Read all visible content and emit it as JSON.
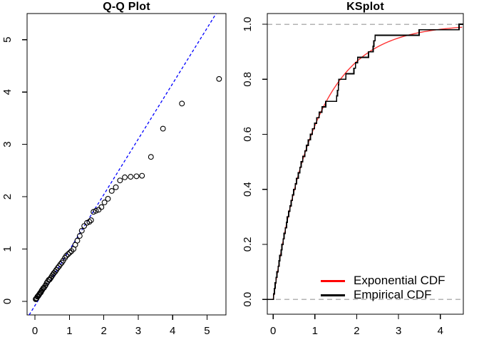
{
  "figure": {
    "background": "#ffffff"
  },
  "chart_data": [
    {
      "type": "scatter",
      "title": "Q-Q Plot",
      "xlabel": "",
      "ylabel": "",
      "x_ticks": [
        0,
        1,
        2,
        3,
        4,
        5
      ],
      "y_ticks": [
        0,
        1,
        2,
        3,
        4,
        5
      ],
      "xlim": [
        -0.23,
        5.55
      ],
      "ylim": [
        -0.26,
        5.5
      ],
      "grid": false,
      "point_style": "open-circle",
      "point_color": "#000000",
      "reference_line": {
        "slope": 1.06,
        "intercept": -0.08,
        "color": "#0000ff",
        "style": "dashed"
      },
      "points": [
        [
          0.02,
          0.04
        ],
        [
          0.03,
          0.05
        ],
        [
          0.05,
          0.06
        ],
        [
          0.07,
          0.09
        ],
        [
          0.09,
          0.1
        ],
        [
          0.11,
          0.12
        ],
        [
          0.13,
          0.14
        ],
        [
          0.15,
          0.16
        ],
        [
          0.17,
          0.17
        ],
        [
          0.19,
          0.2
        ],
        [
          0.21,
          0.22
        ],
        [
          0.24,
          0.25
        ],
        [
          0.26,
          0.26
        ],
        [
          0.29,
          0.29
        ],
        [
          0.31,
          0.31
        ],
        [
          0.34,
          0.35
        ],
        [
          0.37,
          0.38
        ],
        [
          0.4,
          0.41
        ],
        [
          0.43,
          0.42
        ],
        [
          0.46,
          0.45
        ],
        [
          0.49,
          0.48
        ],
        [
          0.52,
          0.51
        ],
        [
          0.55,
          0.54
        ],
        [
          0.59,
          0.57
        ],
        [
          0.62,
          0.6
        ],
        [
          0.66,
          0.64
        ],
        [
          0.7,
          0.67
        ],
        [
          0.74,
          0.71
        ],
        [
          0.78,
          0.74
        ],
        [
          0.82,
          0.78
        ],
        [
          0.87,
          0.83
        ],
        [
          0.91,
          0.87
        ],
        [
          0.96,
          0.9
        ],
        [
          1.01,
          0.93
        ],
        [
          1.06,
          0.96
        ],
        [
          1.12,
          1.0
        ],
        [
          1.17,
          1.08
        ],
        [
          1.23,
          1.16
        ],
        [
          1.3,
          1.25
        ],
        [
          1.36,
          1.35
        ],
        [
          1.43,
          1.44
        ],
        [
          1.51,
          1.5
        ],
        [
          1.58,
          1.52
        ],
        [
          1.63,
          1.55
        ],
        [
          1.7,
          1.71
        ],
        [
          1.77,
          1.73
        ],
        [
          1.85,
          1.75
        ],
        [
          1.93,
          1.8
        ],
        [
          2.02,
          1.89
        ],
        [
          2.12,
          1.96
        ],
        [
          2.23,
          2.11
        ],
        [
          2.35,
          2.18
        ],
        [
          2.47,
          2.31
        ],
        [
          2.61,
          2.37
        ],
        [
          2.78,
          2.38
        ],
        [
          2.95,
          2.39
        ],
        [
          3.11,
          2.4
        ],
        [
          3.37,
          2.76
        ],
        [
          3.72,
          3.3
        ],
        [
          4.27,
          3.78
        ],
        [
          5.35,
          4.25
        ]
      ]
    },
    {
      "type": "line",
      "title": "KSplot",
      "xlabel": "",
      "ylabel": "",
      "x_ticks": [
        0,
        1,
        2,
        3,
        4
      ],
      "y_ticks": [
        0.0,
        0.2,
        0.4,
        0.6,
        0.8,
        1.0
      ],
      "y_tick_labels": [
        "0.0",
        "0.2",
        "0.4",
        "0.6",
        "0.8",
        "1.0"
      ],
      "xlim": [
        -0.14,
        4.55
      ],
      "ylim": [
        -0.054,
        1.039
      ],
      "grid": false,
      "guide_lines_y": [
        0,
        1
      ],
      "guide_line_color": "#b3b3b3",
      "series": [
        {
          "name": "Exponential CDF",
          "kind": "exponential-cdf",
          "color": "#ff0000",
          "rate": 1.0
        },
        {
          "name": "Empirical CDF",
          "kind": "ecdf-steps",
          "color": "#000000",
          "sample": [
            0.01,
            0.03,
            0.05,
            0.07,
            0.09,
            0.12,
            0.14,
            0.16,
            0.19,
            0.21,
            0.24,
            0.26,
            0.29,
            0.32,
            0.34,
            0.37,
            0.4,
            0.43,
            0.46,
            0.49,
            0.53,
            0.56,
            0.6,
            0.64,
            0.67,
            0.71,
            0.76,
            0.8,
            0.84,
            0.89,
            0.94,
            0.99,
            1.04,
            1.1,
            1.17,
            1.26,
            1.52,
            1.54,
            1.56,
            1.57,
            1.74,
            1.93,
            1.97,
            2.02,
            2.28,
            2.39,
            2.41,
            2.44,
            3.49,
            4.45
          ]
        }
      ],
      "legend": {
        "position": "bottom-right",
        "items": [
          {
            "label": "Exponential CDF",
            "color": "#ff0000"
          },
          {
            "label": "Empirical CDF",
            "color": "#000000"
          }
        ]
      }
    }
  ]
}
